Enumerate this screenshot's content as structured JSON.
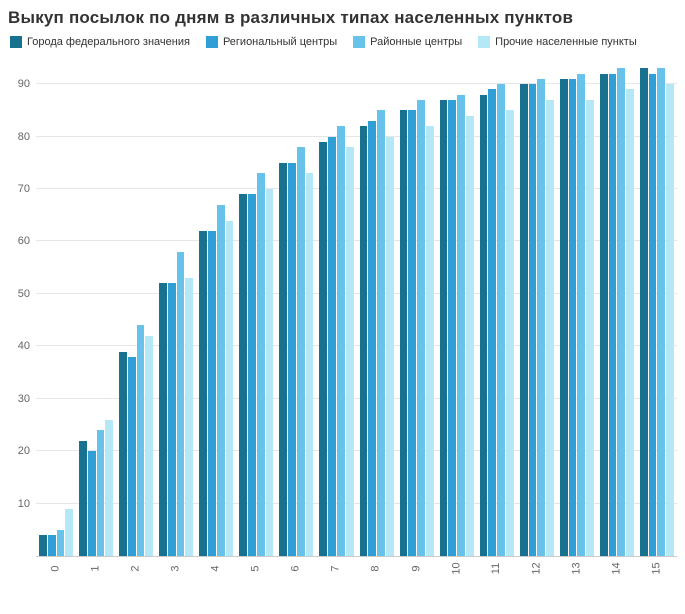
{
  "chart_data": {
    "type": "bar",
    "title": "Выкуп посылок по дням в различных типах населенных пунктов",
    "categories": [
      "0",
      "1",
      "2",
      "3",
      "4",
      "5",
      "6",
      "7",
      "8",
      "9",
      "10",
      "11",
      "12",
      "13",
      "14",
      "15"
    ],
    "series": [
      {
        "name": "Города федерального значения",
        "color": "#17718f",
        "values": [
          4,
          22,
          39,
          52,
          62,
          69,
          75,
          79,
          82,
          85,
          87,
          88,
          90,
          91,
          92,
          93
        ]
      },
      {
        "name": "Региональный центры",
        "color": "#2f9fd6",
        "values": [
          4,
          20,
          38,
          52,
          62,
          69,
          75,
          80,
          83,
          85,
          87,
          89,
          90,
          91,
          92,
          92
        ]
      },
      {
        "name": "Районные центры",
        "color": "#67c3e9",
        "values": [
          5,
          24,
          44,
          58,
          67,
          73,
          78,
          82,
          85,
          87,
          88,
          90,
          91,
          92,
          93,
          93
        ]
      },
      {
        "name": "Прочие населенные пункты",
        "color": "#b5e8f7",
        "values": [
          9,
          26,
          42,
          53,
          64,
          70,
          73,
          78,
          80,
          82,
          84,
          85,
          87,
          87,
          89,
          90
        ]
      }
    ],
    "xlabel": "",
    "ylabel": "",
    "ylim": [
      0,
      95
    ],
    "yticks": [
      10,
      20,
      30,
      40,
      50,
      60,
      70,
      80,
      90
    ],
    "grid": "horizontal",
    "legend_position": "top"
  }
}
